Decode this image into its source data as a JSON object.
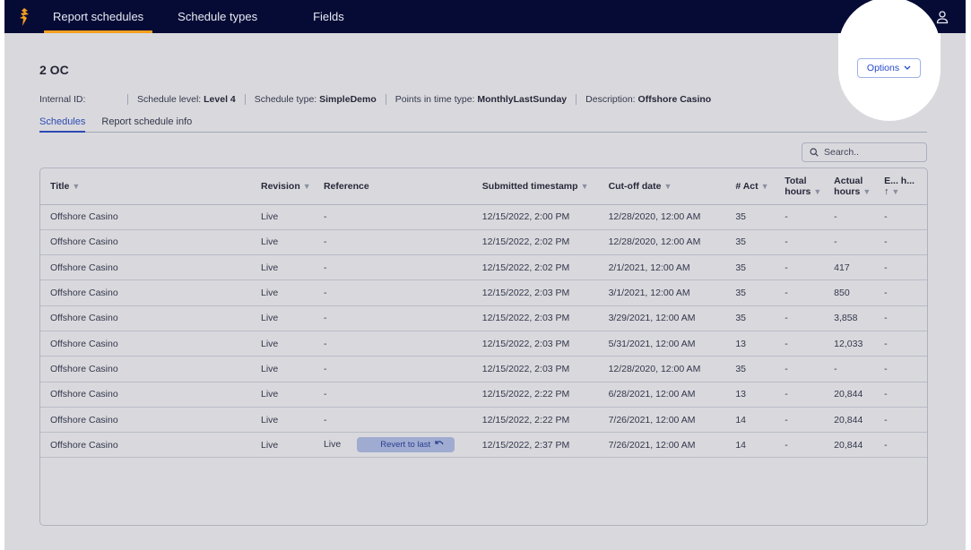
{
  "nav": {
    "tabs": [
      {
        "label": "Report schedules",
        "active": true
      },
      {
        "label": "Schedule types",
        "active": false
      },
      {
        "label": "Fields",
        "active": false
      }
    ],
    "accent": "#f3a01f",
    "background": "#060b36",
    "user_icon": "user-icon"
  },
  "page": {
    "title": "2 OC",
    "options_label": "Options",
    "meta": {
      "internal_id_label": "Internal ID:",
      "schedule_level_label": "Schedule level:",
      "schedule_level_value": "Level 4",
      "schedule_type_label": "Schedule type:",
      "schedule_type_value": "SimpleDemo",
      "points_label": "Points in time type:",
      "points_value": "MonthlyLastSunday",
      "description_label": "Description:",
      "description_value": "Offshore Casino"
    },
    "subtabs": [
      {
        "label": "Schedules",
        "active": true
      },
      {
        "label": "Report schedule info",
        "active": false
      }
    ],
    "search_placeholder": "Search.."
  },
  "table": {
    "headers": {
      "title": "Title",
      "revision": "Revision",
      "reference": "Reference",
      "submitted": "Submitted timestamp",
      "cutoff": "Cut-off date",
      "act": "# Act",
      "total": "Total hours",
      "actual": "Actual hours",
      "e": "E... h...",
      "sort_arrow": "↑"
    },
    "rows": [
      {
        "title": "Offshore Casino",
        "revision": "Live",
        "reference": "-",
        "submitted": "12/15/2022, 2:00 PM",
        "cutoff": "12/28/2020, 12:00 AM",
        "act": "35",
        "total": "-",
        "actual": "-",
        "e": "-"
      },
      {
        "title": "Offshore Casino",
        "revision": "Live",
        "reference": "-",
        "submitted": "12/15/2022, 2:02 PM",
        "cutoff": "12/28/2020, 12:00 AM",
        "act": "35",
        "total": "-",
        "actual": "-",
        "e": "-"
      },
      {
        "title": "Offshore Casino",
        "revision": "Live",
        "reference": "-",
        "submitted": "12/15/2022, 2:02 PM",
        "cutoff": "2/1/2021, 12:00 AM",
        "act": "35",
        "total": "-",
        "actual": "417",
        "e": "-"
      },
      {
        "title": "Offshore Casino",
        "revision": "Live",
        "reference": "-",
        "submitted": "12/15/2022, 2:03 PM",
        "cutoff": "3/1/2021, 12:00 AM",
        "act": "35",
        "total": "-",
        "actual": "850",
        "e": "-"
      },
      {
        "title": "Offshore Casino",
        "revision": "Live",
        "reference": "-",
        "submitted": "12/15/2022, 2:03 PM",
        "cutoff": "3/29/2021, 12:00 AM",
        "act": "35",
        "total": "-",
        "actual": "3,858",
        "e": "-"
      },
      {
        "title": "Offshore Casino",
        "revision": "Live",
        "reference": "-",
        "submitted": "12/15/2022, 2:03 PM",
        "cutoff": "5/31/2021, 12:00 AM",
        "act": "13",
        "total": "-",
        "actual": "12,033",
        "e": "-"
      },
      {
        "title": "Offshore Casino",
        "revision": "Live",
        "reference": "-",
        "submitted": "12/15/2022, 2:03 PM",
        "cutoff": "12/28/2020, 12:00 AM",
        "act": "35",
        "total": "-",
        "actual": "-",
        "e": "-"
      },
      {
        "title": "Offshore Casino",
        "revision": "Live",
        "reference": "-",
        "submitted": "12/15/2022, 2:22 PM",
        "cutoff": "6/28/2021, 12:00 AM",
        "act": "13",
        "total": "-",
        "actual": "20,844",
        "e": "-"
      },
      {
        "title": "Offshore Casino",
        "revision": "Live",
        "reference": "-",
        "submitted": "12/15/2022, 2:22 PM",
        "cutoff": "7/26/2021, 12:00 AM",
        "act": "14",
        "total": "-",
        "actual": "20,844",
        "e": "-"
      },
      {
        "title": "Offshore Casino",
        "revision": "Live",
        "reference": "Live",
        "revert_label": "Revert to last",
        "submitted": "12/15/2022, 2:37 PM",
        "cutoff": "7/26/2021, 12:00 AM",
        "act": "14",
        "total": "-",
        "actual": "20,844",
        "e": "-"
      }
    ]
  }
}
